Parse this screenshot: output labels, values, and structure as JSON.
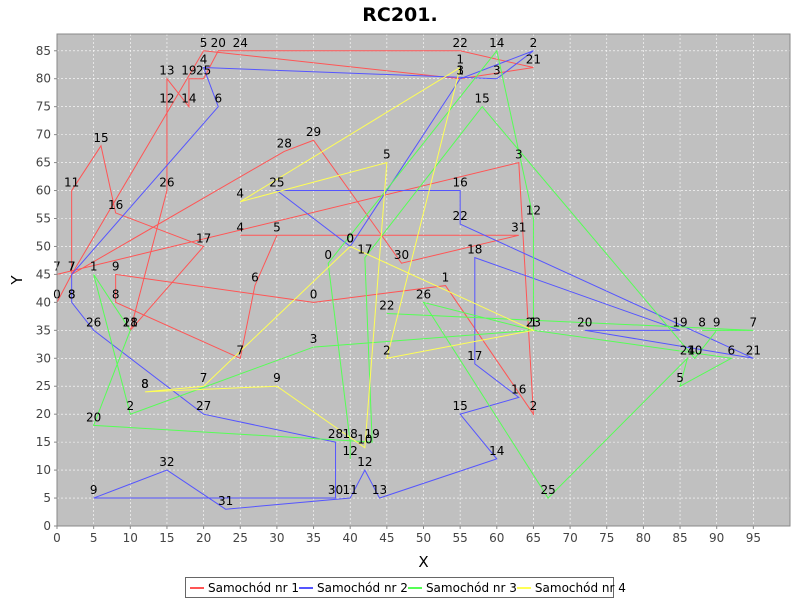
{
  "chart_data": {
    "type": "line",
    "title": "RC201.",
    "xlabel": "X",
    "ylabel": "Y",
    "xlim": [
      0,
      100
    ],
    "ylim": [
      0,
      88
    ],
    "x_ticks": [
      0,
      5,
      10,
      15,
      20,
      25,
      30,
      35,
      40,
      45,
      50,
      55,
      60,
      65,
      70,
      75,
      80,
      85,
      90,
      95
    ],
    "y_ticks": [
      0,
      5,
      10,
      15,
      20,
      25,
      30,
      35,
      40,
      45,
      50,
      55,
      60,
      65,
      70,
      75,
      80,
      85
    ],
    "background": "#c0c0c0",
    "grid": true,
    "legend_position": "bottom",
    "series": [
      {
        "name": "Samochód nr 1",
        "color": "#ff5555",
        "points": [
          {
            "x": 0,
            "y": 40,
            "label": "0"
          },
          {
            "x": 2,
            "y": 45,
            "label": "7"
          },
          {
            "x": 2,
            "y": 60,
            "label": "11"
          },
          {
            "x": 6,
            "y": 68,
            "label": "15"
          },
          {
            "x": 8,
            "y": 56,
            "label": "16"
          },
          {
            "x": 20,
            "y": 50,
            "label": "17"
          },
          {
            "x": 10,
            "y": 35,
            "label": "18"
          },
          {
            "x": 15,
            "y": 60,
            "label": "26"
          },
          {
            "x": 15,
            "y": 75,
            "label": "12"
          },
          {
            "x": 15,
            "y": 80,
            "label": "13"
          },
          {
            "x": 18,
            "y": 75,
            "label": "14"
          },
          {
            "x": 18,
            "y": 80,
            "label": "19"
          },
          {
            "x": 20,
            "y": 80,
            "label": "25"
          },
          {
            "x": 22,
            "y": 85,
            "label": "20"
          },
          {
            "x": 25,
            "y": 85,
            "label": "24"
          },
          {
            "x": 55,
            "y": 85,
            "label": "22"
          },
          {
            "x": 65,
            "y": 82,
            "label": "21"
          },
          {
            "x": 55,
            "y": 80,
            "label": "3"
          },
          {
            "x": 20,
            "y": 85,
            "label": "5"
          },
          {
            "x": 2,
            "y": 45,
            "label": "7"
          },
          {
            "x": 31,
            "y": 67,
            "label": "28"
          },
          {
            "x": 35,
            "y": 69,
            "label": "29"
          },
          {
            "x": 47,
            "y": 47,
            "label": "30"
          },
          {
            "x": 63,
            "y": 52,
            "label": "31"
          },
          {
            "x": 25,
            "y": 52,
            "label": "4"
          },
          {
            "x": 30,
            "y": 52,
            "label": "5"
          },
          {
            "x": 27,
            "y": 43,
            "label": "6"
          },
          {
            "x": 25,
            "y": 30,
            "label": "7"
          },
          {
            "x": 8,
            "y": 40,
            "label": "8"
          },
          {
            "x": 8,
            "y": 45,
            "label": "9"
          },
          {
            "x": 35,
            "y": 40,
            "label": "0"
          },
          {
            "x": 53,
            "y": 43,
            "label": "1"
          },
          {
            "x": 65,
            "y": 20,
            "label": "2"
          },
          {
            "x": 63,
            "y": 65,
            "label": "3"
          },
          {
            "x": 0,
            "y": 45,
            "label": "7"
          }
        ]
      },
      {
        "name": "Samochód nr 2",
        "color": "#5555ff",
        "points": [
          {
            "x": 2,
            "y": 40,
            "label": "8"
          },
          {
            "x": 2,
            "y": 45,
            "label": "7"
          },
          {
            "x": 22,
            "y": 75,
            "label": "6"
          },
          {
            "x": 20,
            "y": 82,
            "label": "4"
          },
          {
            "x": 60,
            "y": 80,
            "label": "3"
          },
          {
            "x": 65,
            "y": 85,
            "label": "2"
          },
          {
            "x": 55,
            "y": 80,
            "label": "1"
          },
          {
            "x": 40,
            "y": 50,
            "label": "0"
          },
          {
            "x": 30,
            "y": 60,
            "label": "25"
          },
          {
            "x": 55,
            "y": 60,
            "label": "16"
          },
          {
            "x": 55,
            "y": 54,
            "label": "22"
          },
          {
            "x": 95,
            "y": 30,
            "label": "21"
          },
          {
            "x": 72,
            "y": 35,
            "label": "20"
          },
          {
            "x": 85,
            "y": 35,
            "label": "19"
          },
          {
            "x": 57,
            "y": 48,
            "label": "18"
          },
          {
            "x": 57,
            "y": 29,
            "label": "17"
          },
          {
            "x": 63,
            "y": 23,
            "label": "16"
          },
          {
            "x": 55,
            "y": 20,
            "label": "15"
          },
          {
            "x": 60,
            "y": 12,
            "label": "14"
          },
          {
            "x": 44,
            "y": 5,
            "label": "13"
          },
          {
            "x": 42,
            "y": 10,
            "label": "12"
          },
          {
            "x": 40,
            "y": 5,
            "label": "11"
          },
          {
            "x": 23,
            "y": 3,
            "label": "31"
          },
          {
            "x": 15,
            "y": 10,
            "label": "32"
          },
          {
            "x": 5,
            "y": 5,
            "label": "9"
          },
          {
            "x": 38,
            "y": 5,
            "label": "30"
          },
          {
            "x": 38,
            "y": 15,
            "label": "28"
          },
          {
            "x": 20,
            "y": 20,
            "label": "27"
          },
          {
            "x": 5,
            "y": 35,
            "label": "26"
          },
          {
            "x": 2,
            "y": 40,
            "label": "8"
          }
        ]
      },
      {
        "name": "Samochód nr 3",
        "color": "#55ff55",
        "points": [
          {
            "x": 45,
            "y": 38,
            "label": "22"
          },
          {
            "x": 95,
            "y": 35,
            "label": "7"
          },
          {
            "x": 88,
            "y": 35,
            "label": "8"
          },
          {
            "x": 90,
            "y": 35,
            "label": "9"
          },
          {
            "x": 87,
            "y": 30,
            "label": "10"
          },
          {
            "x": 58,
            "y": 75,
            "label": "15"
          },
          {
            "x": 42,
            "y": 48,
            "label": "17"
          },
          {
            "x": 43,
            "y": 15,
            "label": "19"
          },
          {
            "x": 5,
            "y": 18,
            "label": "20"
          },
          {
            "x": 10,
            "y": 35,
            "label": "21"
          },
          {
            "x": 5,
            "y": 45,
            "label": "1"
          },
          {
            "x": 10,
            "y": 20,
            "label": "2"
          },
          {
            "x": 35,
            "y": 32,
            "label": "3"
          },
          {
            "x": 65,
            "y": 35,
            "label": "1"
          },
          {
            "x": 50,
            "y": 40,
            "label": "26"
          },
          {
            "x": 67,
            "y": 5,
            "label": "25"
          },
          {
            "x": 86,
            "y": 30,
            "label": "24"
          },
          {
            "x": 85,
            "y": 25,
            "label": "5"
          },
          {
            "x": 92,
            "y": 30,
            "label": "6"
          },
          {
            "x": 65,
            "y": 35,
            "label": "23"
          },
          {
            "x": 65,
            "y": 55,
            "label": "12"
          },
          {
            "x": 60,
            "y": 85,
            "label": "14"
          },
          {
            "x": 37,
            "y": 47,
            "label": "0"
          },
          {
            "x": 40,
            "y": 15,
            "label": "18"
          },
          {
            "x": 40,
            "y": 12,
            "label": "12"
          }
        ]
      },
      {
        "name": "Samochód nr 4",
        "color": "#ffff55",
        "points": [
          {
            "x": 12,
            "y": 24,
            "label": "8"
          },
          {
            "x": 30,
            "y": 25,
            "label": "9"
          },
          {
            "x": 42,
            "y": 14,
            "label": "10"
          },
          {
            "x": 45,
            "y": 65,
            "label": "5"
          },
          {
            "x": 25,
            "y": 58,
            "label": "4"
          },
          {
            "x": 55,
            "y": 82,
            "label": "1"
          },
          {
            "x": 45,
            "y": 30,
            "label": "2"
          },
          {
            "x": 65,
            "y": 35,
            "label": "1"
          },
          {
            "x": 40,
            "y": 50,
            "label": "0"
          },
          {
            "x": 20,
            "y": 25,
            "label": "7"
          },
          {
            "x": 12,
            "y": 24,
            "label": "8"
          }
        ]
      }
    ]
  }
}
